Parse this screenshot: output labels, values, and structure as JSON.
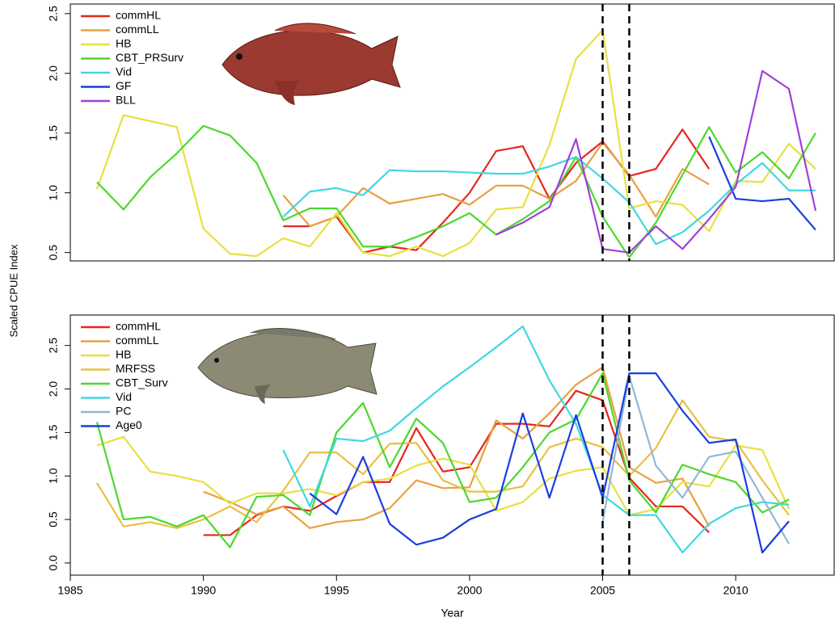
{
  "shared_ylabel": "Scaled CPUE Index",
  "chart_data": [
    {
      "type": "line",
      "xlim": [
        1985,
        2013.7
      ],
      "ylim": [
        0.43,
        2.58
      ],
      "yticks": [
        0.5,
        {
          "value": 1,
          "label": "1.0"
        },
        1.5,
        {
          "value": 2,
          "label": "2.0"
        },
        2.5
      ],
      "vlines": [
        2005,
        2006
      ],
      "series": [
        {
          "name": "commHL",
          "color": "#e8261e",
          "x": [
            1993,
            1994,
            1995,
            1996,
            1997,
            1998,
            1999,
            2000,
            2001,
            2002,
            2003,
            2004,
            2005,
            2006,
            2007,
            2008,
            2009
          ],
          "values": [
            0.72,
            0.72,
            0.8,
            0.5,
            0.55,
            0.52,
            0.75,
            1.0,
            1.35,
            1.39,
            0.95,
            1.25,
            1.43,
            1.14,
            1.2,
            1.53,
            1.2
          ]
        },
        {
          "name": "commLL",
          "color": "#e8a040",
          "x": [
            1993,
            1994,
            1995,
            1996,
            1997,
            1998,
            1999,
            2000,
            2001,
            2002,
            2003,
            2004,
            2005,
            2006,
            2007,
            2008,
            2009
          ],
          "values": [
            0.98,
            0.72,
            0.8,
            1.04,
            0.91,
            0.95,
            0.99,
            0.9,
            1.06,
            1.06,
            0.95,
            1.1,
            1.42,
            1.15,
            0.8,
            1.2,
            1.07
          ]
        },
        {
          "name": "HB",
          "color": "#e8e040",
          "x": [
            1986,
            1987,
            1988,
            1989,
            1990,
            1991,
            1992,
            1993,
            1994,
            1995,
            1996,
            1997,
            1998,
            1999,
            2000,
            2001,
            2002,
            2003,
            2004,
            2005,
            2006,
            2007,
            2008,
            2009,
            2010,
            2011,
            2012,
            2013
          ],
          "values": [
            1.03,
            1.65,
            1.6,
            1.55,
            0.7,
            0.49,
            0.47,
            0.62,
            0.55,
            0.83,
            0.5,
            0.47,
            0.55,
            0.47,
            0.58,
            0.86,
            0.88,
            1.4,
            2.12,
            2.36,
            0.87,
            0.93,
            0.9,
            0.68,
            1.1,
            1.09,
            1.41,
            1.2
          ]
        },
        {
          "name": "CBT_PRSurv",
          "color": "#4cd82c",
          "x": [
            1986,
            1987,
            1988,
            1989,
            1990,
            1991,
            1992,
            1993,
            1994,
            1995,
            1996,
            1997,
            1998,
            1999,
            2000,
            2001,
            2002,
            2003,
            2004,
            2005,
            2006,
            2007,
            2008,
            2009,
            2010,
            2011,
            2012,
            2013
          ],
          "values": [
            1.09,
            0.86,
            1.13,
            1.33,
            1.56,
            1.48,
            1.25,
            0.77,
            0.87,
            0.87,
            0.55,
            0.55,
            0.63,
            0.72,
            0.83,
            0.65,
            0.78,
            0.93,
            1.3,
            0.8,
            0.46,
            0.75,
            1.15,
            1.55,
            1.17,
            1.34,
            1.12,
            1.5
          ]
        },
        {
          "name": "Vid",
          "color": "#40d8e0",
          "x": [
            1993,
            1994,
            1995,
            1996,
            1997,
            1998,
            1999,
            2000,
            2001,
            2002,
            2003,
            2004,
            2005,
            2006,
            2007,
            2008,
            2009,
            2010,
            2011,
            2012,
            2013
          ],
          "values": [
            0.8,
            1.01,
            1.04,
            0.98,
            1.19,
            1.18,
            1.18,
            1.17,
            1.16,
            1.16,
            1.22,
            1.3,
            1.12,
            0.92,
            0.57,
            0.67,
            0.85,
            1.07,
            1.25,
            1.02,
            1.02
          ]
        },
        {
          "name": "GF",
          "color": "#1a3ee0",
          "x": [
            2009,
            2010,
            2011,
            2012,
            2013
          ],
          "values": [
            1.47,
            0.95,
            0.93,
            0.95,
            0.69
          ]
        },
        {
          "name": "BLL",
          "color": "#a040d8",
          "x": [
            2001,
            2002,
            2003,
            2004,
            2005,
            2006,
            2007,
            2008,
            2009,
            2010,
            2011,
            2012,
            2013
          ],
          "values": [
            0.65,
            0.75,
            0.88,
            1.45,
            0.53,
            0.5,
            0.72,
            0.53,
            0.78,
            1.05,
            2.02,
            1.87,
            0.85
          ]
        }
      ]
    },
    {
      "type": "line",
      "xlabel": "Year",
      "xlim": [
        1985,
        2013.7
      ],
      "ylim": [
        -0.14,
        2.85
      ],
      "xticks": [
        1985,
        1990,
        1995,
        2000,
        2005,
        2010
      ],
      "yticks": [
        {
          "value": 0,
          "label": "0.0"
        },
        0.5,
        {
          "value": 1,
          "label": "1.0"
        },
        1.5,
        {
          "value": 2,
          "label": "2.0"
        },
        2.5
      ],
      "vlines": [
        2005,
        2006
      ],
      "series": [
        {
          "name": "commHL",
          "color": "#e8261e",
          "x": [
            1990,
            1991,
            1992,
            1993,
            1994,
            1995,
            1996,
            1997,
            1998,
            1999,
            2000,
            2001,
            2002,
            2003,
            2004,
            2005,
            2006,
            2007,
            2008,
            2009
          ],
          "values": [
            0.32,
            0.32,
            0.55,
            0.65,
            0.6,
            0.77,
            0.93,
            0.93,
            1.55,
            1.05,
            1.1,
            1.6,
            1.6,
            1.57,
            1.98,
            1.87,
            0.98,
            0.65,
            0.65,
            0.35
          ]
        },
        {
          "name": "commLL",
          "color": "#e8a040",
          "x": [
            1990,
            1991,
            1992,
            1993,
            1994,
            1995,
            1996,
            1997,
            1998,
            1999,
            2000,
            2001,
            2002,
            2003,
            2004,
            2005,
            2006,
            2007,
            2008,
            2009
          ],
          "values": [
            0.82,
            0.7,
            0.56,
            0.65,
            0.4,
            0.47,
            0.5,
            0.63,
            0.95,
            0.86,
            0.87,
            1.64,
            1.43,
            1.72,
            2.05,
            2.25,
            1.1,
            0.92,
            0.97,
            0.42
          ]
        },
        {
          "name": "HB",
          "color": "#e8e040",
          "x": [
            1986,
            1987,
            1988,
            1989,
            1990,
            1991,
            1992,
            1993,
            1994,
            1995,
            1996,
            1997,
            1998,
            1999,
            2000,
            2001,
            2002,
            2003,
            2004,
            2005,
            2006,
            2007,
            2008,
            2009,
            2010,
            2011,
            2012
          ],
          "values": [
            1.35,
            1.45,
            1.05,
            1.0,
            0.93,
            0.68,
            0.8,
            0.8,
            0.85,
            0.78,
            0.93,
            0.97,
            1.12,
            1.2,
            1.13,
            0.6,
            0.7,
            0.97,
            1.06,
            1.1,
            0.55,
            0.62,
            0.93,
            0.88,
            1.35,
            1.3,
            0.62
          ]
        },
        {
          "name": "MRFSS",
          "color": "#e8c040",
          "x": [
            1986,
            1987,
            1988,
            1989,
            1990,
            1991,
            1992,
            1993,
            1994,
            1995,
            1996,
            1997,
            1998,
            1999,
            2000,
            2001,
            2002,
            2003,
            2004,
            2005,
            2006,
            2007,
            2008,
            2009,
            2010,
            2011,
            2012
          ],
          "values": [
            0.92,
            0.42,
            0.47,
            0.4,
            0.5,
            0.65,
            0.47,
            0.83,
            1.27,
            1.27,
            1.02,
            1.37,
            1.38,
            0.95,
            0.82,
            0.82,
            0.88,
            1.33,
            1.43,
            1.33,
            1.0,
            1.32,
            1.87,
            1.45,
            1.4,
            0.95,
            0.55
          ]
        },
        {
          "name": "CBT_Surv",
          "color": "#4cd82c",
          "x": [
            1986,
            1987,
            1988,
            1989,
            1990,
            1991,
            1992,
            1993,
            1994,
            1995,
            1996,
            1997,
            1998,
            1999,
            2000,
            2001,
            2002,
            2003,
            2004,
            2005,
            2006,
            2007,
            2008,
            2009,
            2010,
            2011,
            2012
          ],
          "values": [
            1.62,
            0.5,
            0.53,
            0.42,
            0.55,
            0.18,
            0.76,
            0.78,
            0.55,
            1.5,
            1.84,
            1.1,
            1.66,
            1.38,
            0.7,
            0.75,
            1.1,
            1.5,
            1.65,
            2.18,
            0.95,
            0.58,
            1.13,
            1.02,
            0.93,
            0.58,
            0.73
          ]
        },
        {
          "name": "Vid",
          "color": "#40d8e0",
          "x": [
            1993,
            1994,
            1995,
            1996,
            1997,
            1998,
            1999,
            2000,
            2001,
            2002,
            2003,
            2004,
            2005,
            2006,
            2007,
            2008,
            2009,
            2010,
            2011,
            2012
          ],
          "values": [
            1.3,
            0.65,
            1.43,
            1.4,
            1.52,
            1.78,
            2.03,
            2.25,
            2.48,
            2.72,
            2.1,
            1.6,
            0.78,
            0.55,
            0.55,
            0.12,
            0.45,
            0.63,
            0.7,
            0.67
          ]
        },
        {
          "name": "PC",
          "color": "#90b8d8",
          "x": [
            2005,
            2006,
            2007,
            2008,
            2009,
            2010,
            2011,
            2012
          ],
          "values": [
            0.47,
            2.15,
            1.12,
            0.75,
            1.22,
            1.28,
            0.75,
            0.22
          ]
        },
        {
          "name": "Age0",
          "color": "#1a3ee0",
          "x": [
            1994,
            1995,
            1996,
            1997,
            1998,
            1999,
            2000,
            2001,
            2002,
            2003,
            2004,
            2005,
            2006,
            2007,
            2008,
            2009,
            2010,
            2011,
            2012
          ],
          "values": [
            0.8,
            0.56,
            1.22,
            0.45,
            0.21,
            0.29,
            0.5,
            0.62,
            1.72,
            0.75,
            1.7,
            0.75,
            2.18,
            2.18,
            1.75,
            1.38,
            1.42,
            0.12,
            0.48
          ]
        }
      ]
    }
  ]
}
